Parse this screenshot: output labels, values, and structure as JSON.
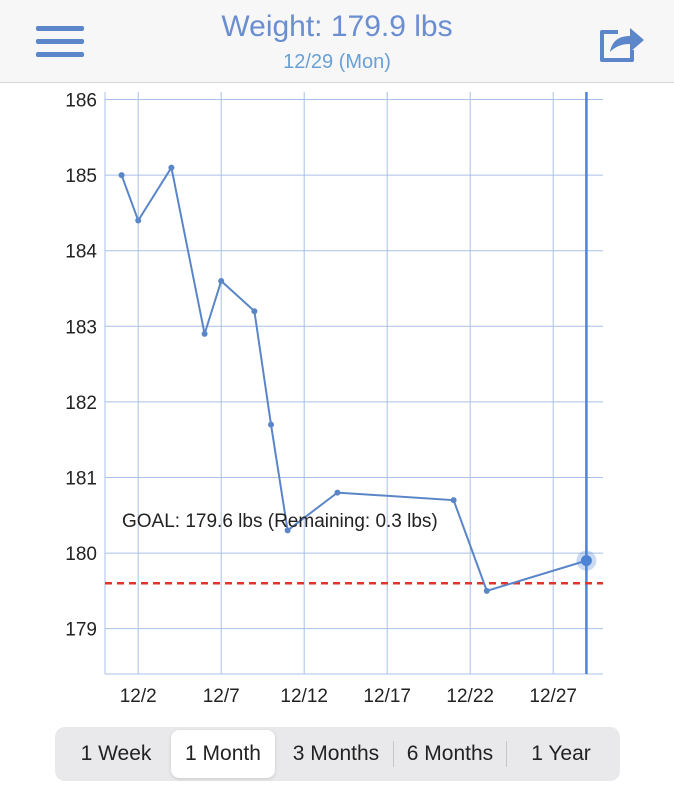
{
  "header": {
    "title": "Weight: 179.9 lbs",
    "subtitle": "12/29 (Mon)",
    "menu_icon": "hamburger-menu-icon",
    "share_icon": "share-export-icon"
  },
  "chart_data": {
    "type": "line",
    "title": "",
    "xlabel": "",
    "ylabel": "",
    "x_ticks": [
      "12/2",
      "12/7",
      "12/12",
      "12/17",
      "12/22",
      "12/27"
    ],
    "y_ticks": [
      186,
      185,
      184,
      183,
      182,
      181,
      180,
      179
    ],
    "ylim": [
      178.4,
      186.1
    ],
    "xlim": [
      "11/30",
      "12/30"
    ],
    "grid": true,
    "series": [
      {
        "x": [
          "12/1",
          "12/2",
          "12/4",
          "12/6",
          "12/7",
          "12/9",
          "12/10",
          "12/11",
          "12/14",
          "12/21",
          "12/23",
          "12/29"
        ],
        "y": [
          185.0,
          184.4,
          185.1,
          182.9,
          183.6,
          183.2,
          181.7,
          180.3,
          180.8,
          180.7,
          179.5,
          179.9
        ],
        "color": "#5a86c8"
      }
    ],
    "selected_point": {
      "x": "12/29",
      "y": 179.9
    },
    "goal": {
      "value": 179.6,
      "color": "#e0342c",
      "label": "GOAL: 179.6 lbs (Remaining: 0.3 lbs)"
    }
  },
  "segmented": {
    "items": [
      "1 Week",
      "1 Month",
      "3 Months",
      "6 Months",
      "1 Year"
    ],
    "selected": "1 Month"
  },
  "colors": {
    "accent": "#5a86c8",
    "grid": "#a9c0e8",
    "goal": "#e0342c",
    "selected_line": "#4d83d4"
  }
}
